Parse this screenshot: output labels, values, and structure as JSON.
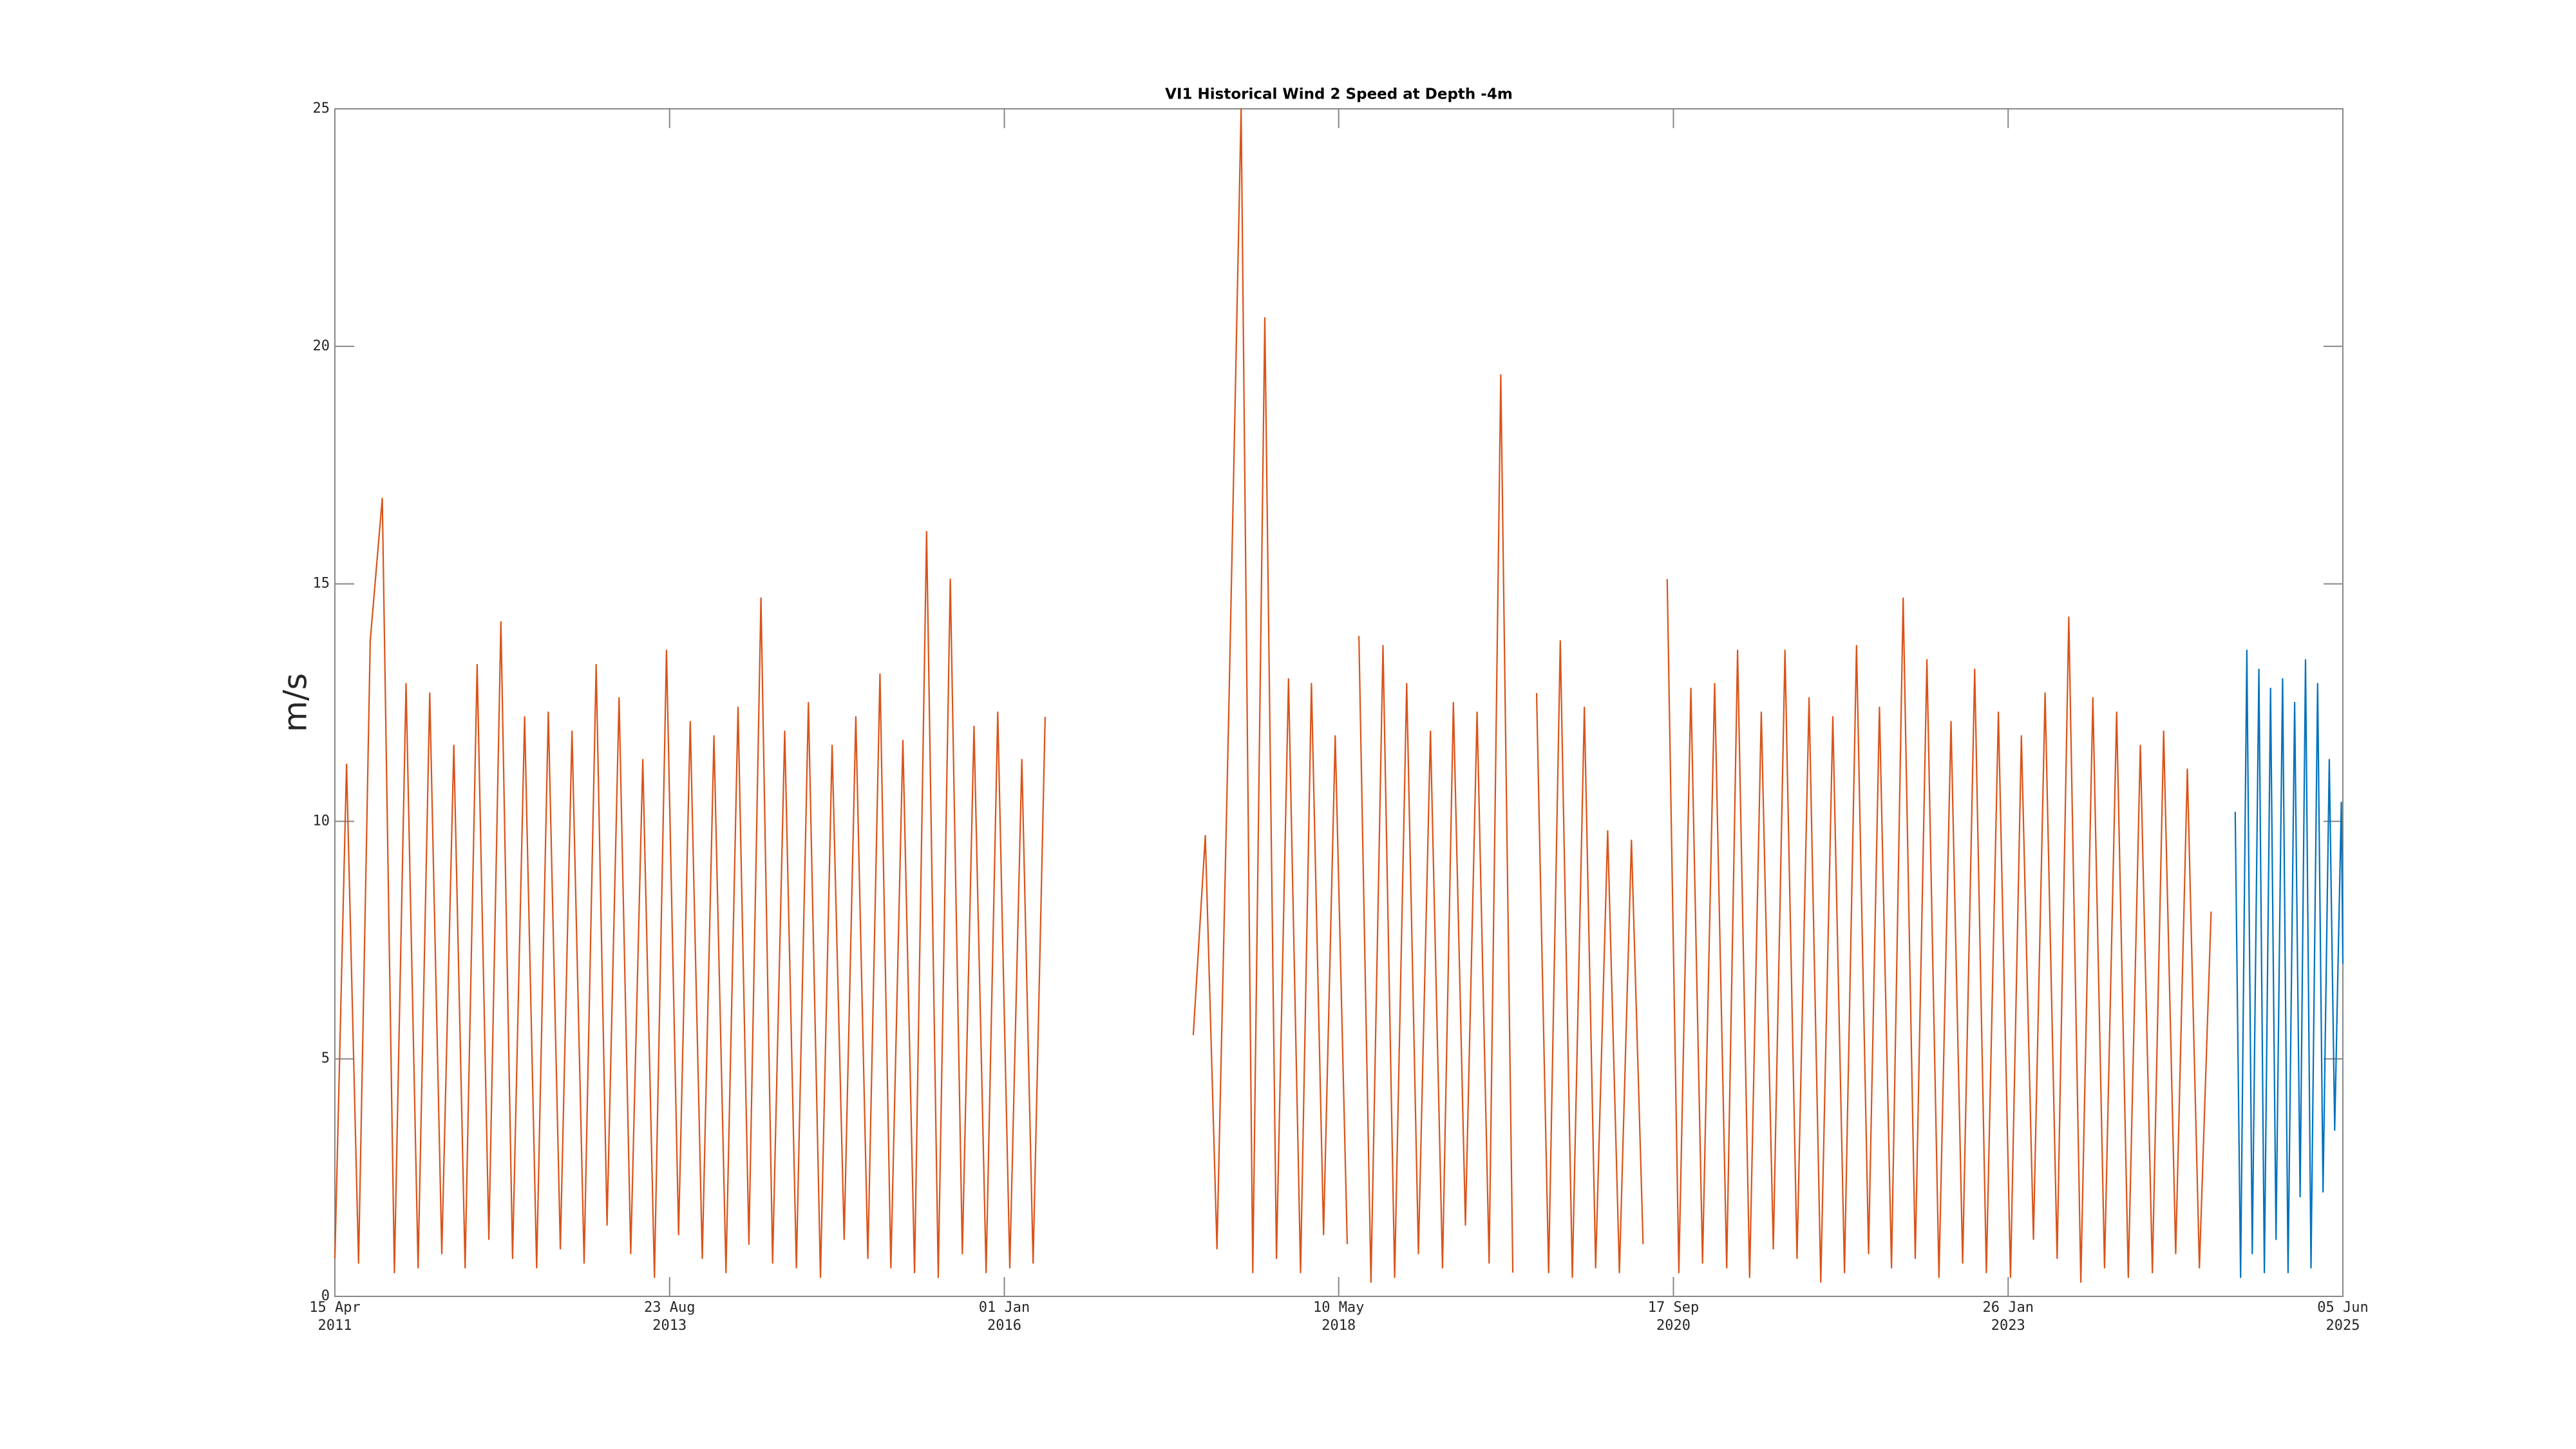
{
  "chart_data": {
    "type": "line",
    "title": "VI1 Historical Wind 2 Speed at Depth -4m",
    "y_label": "m/s",
    "xlim": [
      "2011-04-15",
      "2025-06-05"
    ],
    "xticks": [
      {
        "value": "2011-04-15",
        "label": [
          "15 Apr",
          "2011"
        ]
      },
      {
        "value": "2013-08-23",
        "label": [
          "23 Aug",
          "2013"
        ]
      },
      {
        "value": "2016-01-01",
        "label": [
          "01 Jan",
          "2016"
        ]
      },
      {
        "value": "2018-05-10",
        "label": [
          "10 May",
          "2018"
        ]
      },
      {
        "value": "2020-09-17",
        "label": [
          "17 Sep",
          "2020"
        ]
      },
      {
        "value": "2023-01-26",
        "label": [
          "26 Jan",
          "2023"
        ]
      },
      {
        "value": "2025-06-05",
        "label": [
          "05 Jun",
          "2025"
        ]
      }
    ],
    "ylim": [
      0,
      25
    ],
    "yticks": [
      0,
      5,
      10,
      15,
      20,
      25
    ],
    "grid": false,
    "series": [
      {
        "color": "#d95319",
        "x": [
          "2011-04-15",
          "2011-05-15",
          "2011-06-15",
          "2011-07-15",
          "2011-08-15",
          "2011-09-15",
          "2011-10-15",
          "2011-11-15",
          "2011-12-15",
          "2012-01-15",
          "2012-02-15",
          "2012-03-15",
          "2012-04-15",
          "2012-05-15",
          "2012-06-15",
          "2012-07-15",
          "2012-08-15",
          "2012-09-15",
          "2012-10-15",
          "2012-11-15",
          "2012-12-15",
          "2013-01-15",
          "2013-02-15",
          "2013-03-15",
          "2013-04-15",
          "2013-05-15",
          "2013-06-15",
          "2013-07-15",
          "2013-08-15",
          "2013-09-15",
          "2013-10-15",
          "2013-11-15",
          "2013-12-15",
          "2014-01-15",
          "2014-02-15",
          "2014-03-15",
          "2014-04-15",
          "2014-05-15",
          "2014-06-15",
          "2014-07-15",
          "2014-08-15",
          "2014-09-15",
          "2014-10-15",
          "2014-11-15",
          "2014-12-15",
          "2015-01-15",
          "2015-02-15",
          "2015-03-15",
          "2015-04-15",
          "2015-05-15",
          "2015-06-15",
          "2015-07-15",
          "2015-08-15",
          "2015-09-15",
          "2015-10-15",
          "2015-11-15",
          "2015-12-15",
          "2016-01-15",
          "2016-02-15",
          "2016-03-15",
          "2016-04-15",
          "2016-10-15",
          "2017-05-01",
          "2017-06-01",
          "2017-07-01",
          "2017-08-01",
          "2017-09-01",
          "2017-10-01",
          "2017-11-01",
          "2017-12-01",
          "2018-01-01",
          "2018-02-01",
          "2018-03-01",
          "2018-04-01",
          "2018-05-01",
          "2018-06-01",
          "2018-06-15",
          "2018-07-01",
          "2018-08-01",
          "2018-09-01",
          "2018-10-01",
          "2018-11-01",
          "2018-12-01",
          "2019-01-01",
          "2019-02-01",
          "2019-03-01",
          "2019-04-01",
          "2019-05-01",
          "2019-06-01",
          "2019-07-01",
          "2019-08-01",
          "2019-09-01",
          "2019-10-01",
          "2019-11-01",
          "2019-12-01",
          "2020-01-01",
          "2020-02-01",
          "2020-03-01",
          "2020-04-01",
          "2020-05-01",
          "2020-06-01",
          "2020-07-01",
          "2020-08-01",
          "2020-09-01",
          "2020-10-01",
          "2020-11-01",
          "2020-12-01",
          "2021-01-01",
          "2021-02-01",
          "2021-03-01",
          "2021-04-01",
          "2021-05-01",
          "2021-06-01",
          "2021-07-01",
          "2021-08-01",
          "2021-09-01",
          "2021-10-01",
          "2021-11-01",
          "2021-12-01",
          "2022-01-01",
          "2022-02-01",
          "2022-03-01",
          "2022-04-01",
          "2022-05-01",
          "2022-06-01",
          "2022-07-01",
          "2022-08-01",
          "2022-09-01",
          "2022-10-01",
          "2022-11-01",
          "2022-12-01",
          "2023-01-01",
          "2023-02-01",
          "2023-03-01",
          "2023-04-01",
          "2023-05-01",
          "2023-06-01",
          "2023-07-01",
          "2023-08-01",
          "2023-09-01",
          "2023-10-01",
          "2023-11-01",
          "2023-12-01",
          "2024-01-01",
          "2024-02-01",
          "2024-03-01",
          "2024-04-01",
          "2024-05-01",
          "2024-06-01",
          "2024-07-01"
        ],
        "values": [
          0.8,
          11.2,
          0.7,
          13.8,
          16.8,
          0.5,
          12.9,
          0.6,
          12.7,
          0.9,
          11.6,
          0.6,
          13.3,
          1.2,
          14.2,
          0.8,
          12.2,
          0.6,
          12.3,
          1.0,
          11.9,
          0.7,
          13.3,
          1.5,
          12.6,
          0.9,
          11.3,
          0.4,
          13.6,
          1.3,
          12.1,
          0.8,
          11.8,
          0.5,
          12.4,
          1.1,
          14.7,
          0.7,
          11.9,
          0.6,
          12.5,
          0.4,
          11.6,
          1.2,
          12.2,
          0.8,
          13.1,
          0.6,
          11.7,
          0.5,
          16.1,
          0.4,
          15.1,
          0.9,
          12.0,
          0.5,
          12.3,
          0.6,
          11.3,
          0.7,
          12.2,
          null,
          5.5,
          9.7,
          1.0,
          12.6,
          25.0,
          0.5,
          20.6,
          0.8,
          13.0,
          0.5,
          12.9,
          1.3,
          11.8,
          1.1,
          null,
          13.9,
          0.3,
          13.7,
          0.4,
          12.9,
          0.9,
          11.9,
          0.6,
          12.5,
          1.5,
          12.3,
          0.7,
          19.4,
          0.5,
          null,
          12.7,
          0.5,
          13.8,
          0.4,
          12.4,
          0.6,
          9.8,
          0.5,
          9.6,
          1.1,
          null,
          15.1,
          0.5,
          12.8,
          0.7,
          12.9,
          0.6,
          13.6,
          0.4,
          12.3,
          1.0,
          13.6,
          0.8,
          12.6,
          0.3,
          12.2,
          0.5,
          13.7,
          0.9,
          12.4,
          0.6,
          14.7,
          0.8,
          13.4,
          0.4,
          12.1,
          0.7,
          13.2,
          0.5,
          12.3,
          0.4,
          11.8,
          1.2,
          12.7,
          0.8,
          14.3,
          0.3,
          12.6,
          0.6,
          12.3,
          0.4,
          11.6,
          0.5,
          11.9,
          0.9,
          11.1,
          0.6,
          8.1
        ]
      },
      {
        "color": "#0072bd",
        "x": [
          "2024-09-01",
          "2024-09-15",
          "2024-10-01",
          "2024-10-15",
          "2024-11-01",
          "2024-11-15",
          "2024-12-01",
          "2024-12-15",
          "2025-01-01",
          "2025-01-15",
          "2025-02-01",
          "2025-02-15",
          "2025-03-01",
          "2025-03-15",
          "2025-04-01",
          "2025-04-15",
          "2025-05-01",
          "2025-05-15",
          "2025-06-01",
          "2025-06-05"
        ],
        "values": [
          10.2,
          0.4,
          13.6,
          0.9,
          13.2,
          0.5,
          12.8,
          1.2,
          13.0,
          0.5,
          12.5,
          2.1,
          13.4,
          0.6,
          12.9,
          2.2,
          11.3,
          3.5,
          10.4,
          7.0
        ]
      }
    ]
  }
}
